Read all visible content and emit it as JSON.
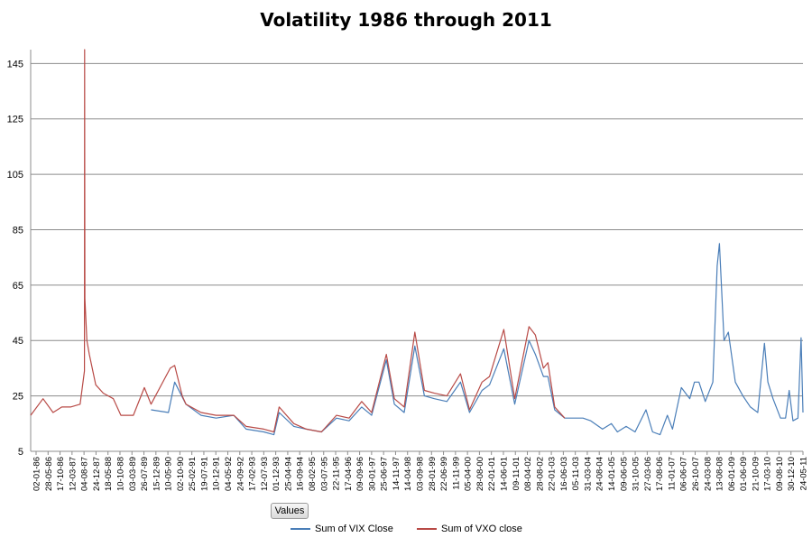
{
  "chart_data": {
    "type": "line",
    "title": "Volatility 1986 through 2011",
    "xlabel": "",
    "ylabel": "",
    "ylim": [
      5,
      150
    ],
    "y_ticks": [
      5,
      25,
      45,
      65,
      85,
      105,
      125,
      145
    ],
    "x_tick_labels": [
      "02-01-86",
      "28-05-86",
      "17-10-86",
      "12-03-87",
      "04-08-87",
      "24-12-87",
      "18-05-88",
      "10-10-88",
      "03-03-89",
      "26-07-89",
      "15-12-89",
      "10-05-90",
      "02-10-90",
      "25-02-91",
      "19-07-91",
      "10-12-91",
      "04-05-92",
      "24-09-92",
      "17-02-93",
      "12-07-93",
      "01-12-93",
      "25-04-94",
      "16-09-94",
      "08-02-95",
      "03-07-95",
      "22-11-95",
      "17-04-96",
      "09-09-96",
      "30-01-97",
      "25-06-97",
      "14-11-97",
      "14-04-98",
      "03-09-98",
      "28-01-99",
      "22-06-99",
      "11-11-99",
      "05-04-00",
      "28-08-00",
      "22-01-01",
      "14-06-01",
      "09-11-01",
      "08-04-02",
      "28-08-02",
      "22-01-03",
      "16-06-03",
      "05-11-03",
      "31-03-04",
      "24-08-04",
      "14-01-05",
      "09-06-05",
      "31-10-05",
      "27-03-06",
      "17-08-06",
      "11-01-07",
      "06-06-07",
      "26-10-07",
      "24-03-08",
      "13-08-08",
      "06-01-09",
      "01-06-09",
      "21-10-09",
      "17-03-10",
      "09-08-10",
      "30-12-10",
      "24-05-11"
    ],
    "x_domain": [
      "1986-01-02",
      "2011-08-31"
    ],
    "grid": true,
    "legend_position": "bottom",
    "series": [
      {
        "name": "Sum of VIX Close",
        "color": "#4a7eb8",
        "x": [
          "1990-01-02",
          "1990-08-01",
          "1990-10-15",
          "1991-03-01",
          "1991-09-01",
          "1992-03-01",
          "1992-10-01",
          "1993-03-01",
          "1993-10-01",
          "1994-02-01",
          "1994-04-05",
          "1994-10-01",
          "1995-03-01",
          "1995-09-01",
          "1996-03-01",
          "1996-08-01",
          "1997-01-01",
          "1997-05-01",
          "1997-10-27",
          "1998-02-01",
          "1998-06-01",
          "1998-10-08",
          "1999-02-01",
          "1999-06-01",
          "1999-11-01",
          "2000-04-14",
          "2000-08-01",
          "2001-01-01",
          "2001-04-01",
          "2001-09-21",
          "2002-02-01",
          "2002-07-24",
          "2002-10-10",
          "2003-01-15",
          "2003-03-11",
          "2003-06-01",
          "2003-10-01",
          "2004-01-01",
          "2004-05-10",
          "2004-08-12",
          "2005-01-01",
          "2005-04-20",
          "2005-07-01",
          "2005-10-15",
          "2006-02-01",
          "2006-06-13",
          "2006-09-01",
          "2006-12-01",
          "2007-02-27",
          "2007-05-01",
          "2007-08-16",
          "2007-11-26",
          "2008-01-22",
          "2008-03-17",
          "2008-06-01",
          "2008-09-01",
          "2008-10-24",
          "2008-11-20",
          "2009-01-15",
          "2009-03-09",
          "2009-06-01",
          "2009-09-01",
          "2009-12-01",
          "2010-03-01",
          "2010-05-20",
          "2010-07-01",
          "2010-09-01",
          "2010-12-01",
          "2011-02-01",
          "2011-03-16",
          "2011-05-01",
          "2011-07-01",
          "2011-08-08",
          "2011-08-31"
        ],
        "y": [
          20,
          19,
          30,
          22,
          18,
          17,
          18,
          13,
          12,
          11,
          19,
          14,
          13,
          12,
          17,
          16,
          21,
          18,
          38,
          22,
          19,
          43,
          25,
          24,
          23,
          30,
          19,
          27,
          29,
          42,
          22,
          45,
          40,
          32,
          32,
          20,
          17,
          17,
          17,
          16,
          13,
          15,
          12,
          14,
          12,
          20,
          12,
          11,
          18,
          13,
          28,
          24,
          30,
          30,
          23,
          30,
          72,
          80,
          45,
          48,
          30,
          25,
          21,
          19,
          44,
          30,
          24,
          17,
          17,
          27,
          16,
          17,
          46,
          19
        ]
      },
      {
        "name": "Sum of VXO close",
        "color": "#b84a46",
        "x": [
          "1986-01-02",
          "1986-06-01",
          "1986-10-01",
          "1987-01-15",
          "1987-05-01",
          "1987-08-25",
          "1987-10-16",
          "1987-10-19",
          "1987-10-20",
          "1987-10-22",
          "1987-11-15",
          "1987-12-15",
          "1988-03-01",
          "1988-06-01",
          "1988-10-01",
          "1989-01-01",
          "1989-06-01",
          "1989-10-13",
          "1990-01-01",
          "1990-08-23",
          "1990-10-15",
          "1991-01-15",
          "1991-03-01",
          "1991-09-01",
          "1992-03-01",
          "1992-10-01",
          "1993-03-01",
          "1993-10-01",
          "1994-02-01",
          "1994-04-05",
          "1994-10-01",
          "1995-03-01",
          "1995-09-01",
          "1996-03-01",
          "1996-08-01",
          "1997-01-01",
          "1997-05-01",
          "1997-10-27",
          "1998-02-01",
          "1998-06-01",
          "1998-10-08",
          "1999-02-01",
          "1999-06-01",
          "1999-11-01",
          "2000-04-14",
          "2000-08-01",
          "2001-01-01",
          "2001-04-01",
          "2001-09-21",
          "2002-02-01",
          "2002-07-24",
          "2002-10-10",
          "2003-01-15",
          "2003-03-11",
          "2003-06-01",
          "2003-10-01"
        ],
        "y": [
          18,
          24,
          19,
          21,
          21,
          22,
          34,
          150,
          113,
          60,
          45,
          40,
          29,
          26,
          24,
          18,
          18,
          28,
          22,
          35,
          36,
          25,
          22,
          19,
          18,
          18,
          14,
          13,
          12,
          21,
          15,
          13,
          12,
          18,
          17,
          23,
          19,
          40,
          24,
          21,
          48,
          27,
          26,
          25,
          33,
          20,
          30,
          32,
          49,
          24,
          50,
          47,
          35,
          37,
          21,
          17
        ]
      }
    ]
  },
  "controls": {
    "values_button_label": "Values"
  }
}
